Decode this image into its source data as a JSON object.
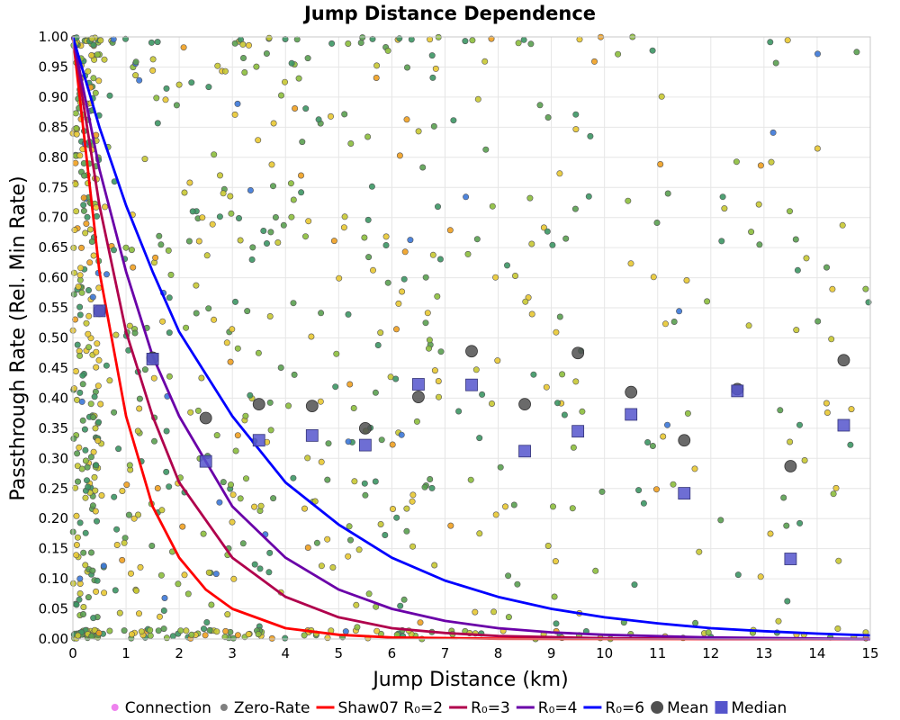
{
  "chart_data": {
    "type": "scatter",
    "title": "Jump Distance Dependence",
    "xlabel": "Jump Distance (km)",
    "ylabel": "Passthrough Rate (Rel. Min Rate)",
    "xlim": [
      0,
      15
    ],
    "ylim": [
      0,
      1
    ],
    "x_ticks": [
      "0",
      "1",
      "2",
      "3",
      "4",
      "5",
      "6",
      "7",
      "8",
      "9",
      "10",
      "11",
      "12",
      "13",
      "14",
      "15"
    ],
    "y_ticks": [
      "0.00",
      "0.05",
      "0.10",
      "0.15",
      "0.20",
      "0.25",
      "0.30",
      "0.35",
      "0.40",
      "0.45",
      "0.50",
      "0.55",
      "0.60",
      "0.65",
      "0.70",
      "0.75",
      "0.80",
      "0.85",
      "0.90",
      "0.95",
      "1.00"
    ],
    "grid": true,
    "legend_position": "bottom",
    "legend": [
      {
        "label": "Connection",
        "marker": "dot",
        "color": "#ee82ee"
      },
      {
        "label": "Zero-Rate",
        "marker": "dot",
        "color": "#808080"
      },
      {
        "label": "Shaw07 R₀=2",
        "marker": "line",
        "color": "#ff0000"
      },
      {
        "label": "R₀=3",
        "marker": "line",
        "color": "#b0004c"
      },
      {
        "label": "R₀=4",
        "marker": "line",
        "color": "#6a00a8"
      },
      {
        "label": "R₀=6",
        "marker": "line",
        "color": "#0000ff"
      },
      {
        "label": "Mean",
        "marker": "circle",
        "color": "#505050"
      },
      {
        "label": "Median",
        "marker": "square",
        "color": "#5555cc"
      }
    ],
    "connection_colors": [
      "#e8c832",
      "#c8c832",
      "#8cbe3c",
      "#5aa050",
      "#3c9664",
      "#f0a020",
      "#3c78d8"
    ],
    "curves": [
      {
        "name": "Shaw07 R₀=2",
        "color": "#ff0000",
        "points": [
          [
            0,
            1.0
          ],
          [
            0.5,
            0.61
          ],
          [
            1,
            0.37
          ],
          [
            1.5,
            0.22
          ],
          [
            2,
            0.135
          ],
          [
            2.5,
            0.082
          ],
          [
            3,
            0.05
          ],
          [
            4,
            0.018
          ],
          [
            5,
            0.007
          ],
          [
            6,
            0.0025
          ],
          [
            8,
            0.0004
          ],
          [
            10,
            0.0001
          ],
          [
            15,
            0.0
          ]
        ]
      },
      {
        "name": "R₀=3",
        "color": "#b0004c",
        "points": [
          [
            0,
            1.0
          ],
          [
            0.5,
            0.72
          ],
          [
            1,
            0.51
          ],
          [
            1.5,
            0.37
          ],
          [
            2,
            0.26
          ],
          [
            3,
            0.135
          ],
          [
            4,
            0.07
          ],
          [
            5,
            0.036
          ],
          [
            6,
            0.018
          ],
          [
            7,
            0.01
          ],
          [
            8,
            0.005
          ],
          [
            10,
            0.0013
          ],
          [
            12,
            0.0003
          ],
          [
            15,
            0.0
          ]
        ]
      },
      {
        "name": "R₀=4",
        "color": "#6a00a8",
        "points": [
          [
            0,
            1.0
          ],
          [
            0.5,
            0.78
          ],
          [
            1,
            0.61
          ],
          [
            1.5,
            0.47
          ],
          [
            2,
            0.37
          ],
          [
            3,
            0.22
          ],
          [
            4,
            0.135
          ],
          [
            5,
            0.082
          ],
          [
            6,
            0.05
          ],
          [
            7,
            0.03
          ],
          [
            8,
            0.018
          ],
          [
            9,
            0.011
          ],
          [
            10,
            0.007
          ],
          [
            12,
            0.0025
          ],
          [
            15,
            0.0
          ]
        ]
      },
      {
        "name": "R₀=6",
        "color": "#0000ff",
        "points": [
          [
            0,
            1.0
          ],
          [
            0.5,
            0.85
          ],
          [
            1,
            0.72
          ],
          [
            1.5,
            0.61
          ],
          [
            2,
            0.51
          ],
          [
            3,
            0.37
          ],
          [
            4,
            0.26
          ],
          [
            5,
            0.19
          ],
          [
            6,
            0.135
          ],
          [
            7,
            0.097
          ],
          [
            8,
            0.07
          ],
          [
            9,
            0.05
          ],
          [
            10,
            0.036
          ],
          [
            11,
            0.026
          ],
          [
            12,
            0.018
          ],
          [
            13,
            0.013
          ],
          [
            14,
            0.009
          ],
          [
            15,
            0.006
          ]
        ]
      }
    ],
    "mean": {
      "x": [
        0.5,
        1.5,
        2.5,
        3.5,
        4.5,
        5.5,
        6.5,
        7.5,
        8.5,
        9.5,
        10.5,
        11.5,
        12.5,
        13.5,
        14.5
      ],
      "y": [
        0.545,
        0.467,
        0.367,
        0.39,
        0.387,
        0.35,
        0.402,
        0.478,
        0.39,
        0.475,
        0.41,
        0.33,
        0.415,
        0.287,
        0.463
      ]
    },
    "median": {
      "x": [
        0.5,
        1.5,
        2.5,
        3.5,
        4.5,
        5.5,
        6.5,
        7.5,
        8.5,
        9.5,
        10.5,
        11.5,
        12.5,
        13.5,
        14.5
      ],
      "y": [
        0.545,
        0.465,
        0.295,
        0.33,
        0.338,
        0.322,
        0.423,
        0.422,
        0.312,
        0.345,
        0.373,
        0.242,
        0.412,
        0.133,
        0.355
      ]
    },
    "scatter_note_count": 900
  }
}
